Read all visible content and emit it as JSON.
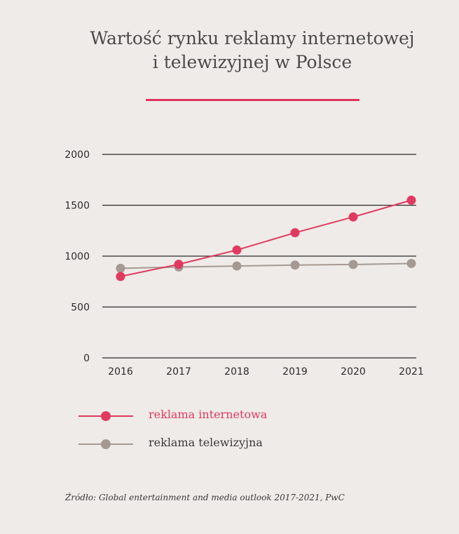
{
  "chart_data": {
    "type": "line",
    "title_line1": "Wartość rynku reklamy internetowej",
    "title_line2": "i telewizyjnej w Polsce",
    "categories": [
      "2016",
      "2017",
      "2018",
      "2019",
      "2020",
      "2021"
    ],
    "y_ticks": [
      "0",
      "500",
      "1000",
      "1500",
      "2000"
    ],
    "ylim": [
      0,
      2000
    ],
    "grid": true,
    "series": [
      {
        "name": "reklama internetowa",
        "color": "#e03a60",
        "values": [
          800,
          920,
          1060,
          1230,
          1385,
          1550
        ]
      },
      {
        "name": "reklama telewizyjna",
        "color": "#a59a93",
        "values": [
          880,
          893,
          903,
          912,
          918,
          928
        ]
      }
    ],
    "legend_position": "bottom-left"
  },
  "source": "Źródło: Global entertainment and media outlook 2017-2021, PwC",
  "accent_rule_color": "#e0325e"
}
